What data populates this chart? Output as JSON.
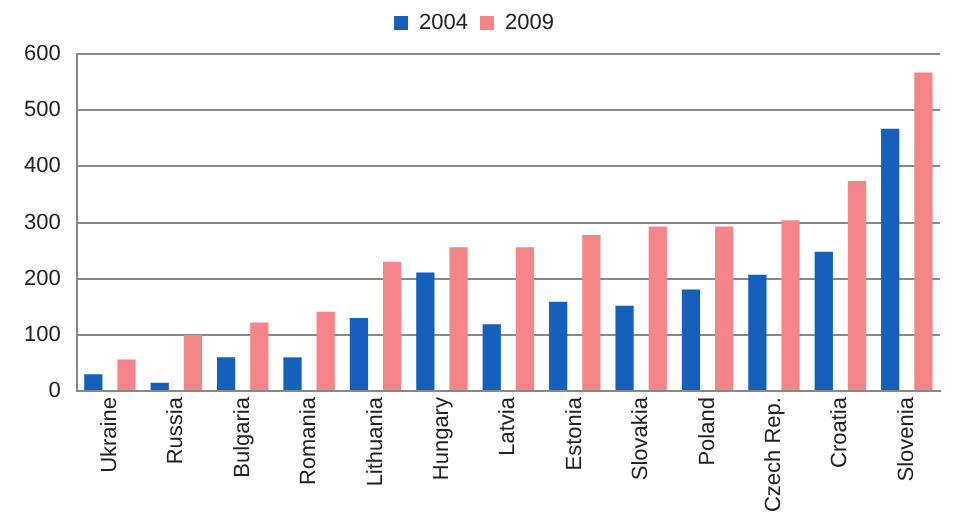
{
  "chart_data": {
    "type": "bar",
    "categories": [
      "Ukraine",
      "Russia",
      "Bulgaria",
      "Romania",
      "Lithuania",
      "Hungary",
      "Latvia",
      "Estonia",
      "Slovakia",
      "Poland",
      "Czech Rep.",
      "Croatia",
      "Slovenia"
    ],
    "series": [
      {
        "name": "2004",
        "color": "#1560bd",
        "values": [
          30,
          15,
          60,
          60,
          130,
          211,
          119,
          159,
          152,
          181,
          207,
          248,
          467
        ]
      },
      {
        "name": "2009",
        "color": "#f4868a",
        "values": [
          56,
          100,
          122,
          141,
          230,
          256,
          256,
          278,
          293,
          293,
          304,
          374,
          567
        ]
      }
    ],
    "ylim": [
      0,
      600
    ],
    "yticks": [
      0,
      100,
      200,
      300,
      400,
      500,
      600
    ],
    "grid": "y",
    "legend": "top"
  }
}
